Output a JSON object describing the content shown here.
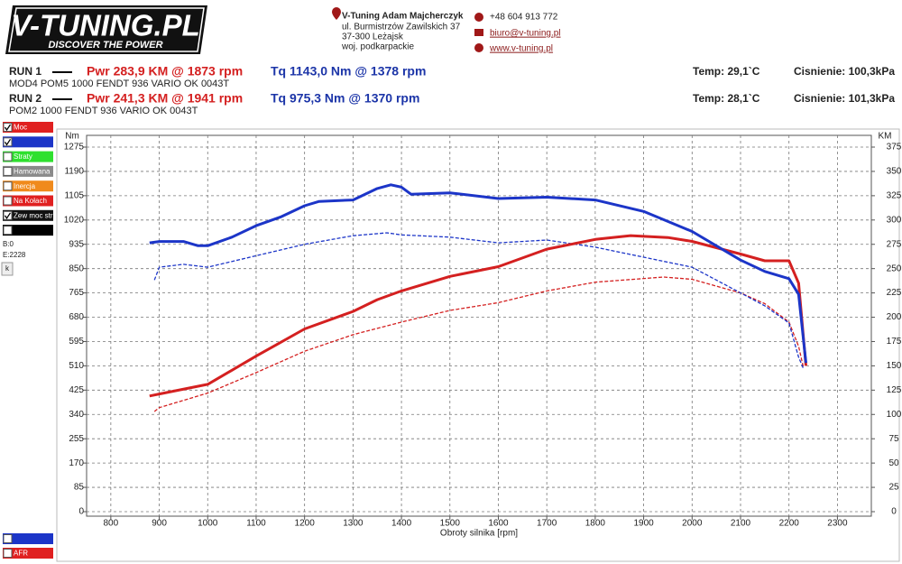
{
  "header": {
    "logo": "V-TUNING.PL",
    "slogan": "DISCOVER THE POWER",
    "company": "V-Tuning Adam Majcherczyk",
    "address": [
      "ul. Burmistrzów Zawilskich 37",
      "37-300 Leżajsk",
      "woj. podkarpackie"
    ],
    "phone": "+48 604 913 772",
    "email": "biuro@v-tuning.pl",
    "website": "www.v-tuning.pl"
  },
  "runs": [
    {
      "label": "RUN 1",
      "power": "Pwr 283,9 KM @ 1873 rpm",
      "torque": "Tq 1143,0 Nm @ 1378 rpm",
      "description": "MOD4 POM5 1000 FENDT 936 VARIO OK 0043T",
      "temp": "Temp: 29,1`C",
      "pressure": "Cisnienie: 100,3kPa"
    },
    {
      "label": "RUN 2",
      "power": "Pwr 241,3 KM @ 1941 rpm",
      "torque": "Tq 975,3 Nm @ 1370 rpm",
      "description": "POM2 1000 FENDT 936 VARIO OK 0043T",
      "temp": "Temp: 28,1`C",
      "pressure": "Cisnienie: 101,3kPa"
    }
  ],
  "panel": {
    "items": [
      {
        "label": "Moc",
        "checked": true,
        "color": "#e02020"
      },
      {
        "checked": true,
        "color": "#1c35c8"
      },
      {
        "label": "Straty",
        "checked": false,
        "color": "#2ee02e"
      },
      {
        "label": "Hamowana",
        "checked": false,
        "color": "#8a8a8a"
      },
      {
        "label": "Inercja",
        "checked": false,
        "color": "#f08a1c"
      },
      {
        "label": "Na Kołach",
        "checked": false,
        "color": "#e02020"
      },
      {
        "label": "Zew moc str",
        "checked": true,
        "color": "#111111"
      },
      {
        "checked": false,
        "color": "#000000"
      }
    ],
    "b": "B:0",
    "e": "E:2228",
    "button": "k",
    "bottom": [
      {
        "checked": false,
        "color": "#1c35c8"
      },
      {
        "label": "AFR",
        "checked": false,
        "color": "#e02020"
      }
    ]
  },
  "chart_data": {
    "type": "line",
    "xlabel": "Obroty silnika [rpm]",
    "ylabel": "Nm",
    "y2label": "KM",
    "xlim": [
      750,
      2370
    ],
    "xticks": [
      800,
      900,
      1000,
      1100,
      1200,
      1300,
      1400,
      1500,
      1600,
      1700,
      1800,
      1900,
      2000,
      2100,
      2200,
      2300
    ],
    "ylim": [
      0,
      1275
    ],
    "yticks": [
      0,
      85,
      170,
      255,
      340,
      425,
      510,
      595,
      680,
      765,
      850,
      935,
      1020,
      1105,
      1190,
      1275
    ],
    "y2lim": [
      0,
      375
    ],
    "y2ticks": [
      0,
      25,
      50,
      75,
      100,
      125,
      150,
      175,
      200,
      225,
      250,
      275,
      300,
      325,
      350,
      375
    ],
    "grid": true,
    "series": [
      {
        "color": "#d42020",
        "dashed": true,
        "axis": "y2",
        "x": [
          890,
          900,
          1000,
          1100,
          1200,
          1300,
          1400,
          1500,
          1600,
          1700,
          1800,
          1941,
          2000,
          2100,
          2150,
          2200,
          2220,
          2230
        ],
        "values": [
          103,
          107,
          122,
          143,
          165,
          182,
          195,
          207,
          215,
          227,
          236,
          241.3,
          239,
          225,
          214,
          195,
          170,
          148
        ]
      },
      {
        "color": "#1c35c8",
        "dashed": true,
        "axis": "y",
        "x": [
          890,
          900,
          950,
          1000,
          1100,
          1200,
          1300,
          1370,
          1400,
          1500,
          1600,
          1700,
          1800,
          1900,
          2000,
          2100,
          2150,
          2200,
          2220,
          2230
        ],
        "values": [
          810,
          855,
          865,
          855,
          895,
          935,
          965,
          975.3,
          968,
          960,
          940,
          950,
          925,
          890,
          855,
          765,
          720,
          660,
          540,
          500
        ]
      },
      {
        "color": "#d42020",
        "dashed": false,
        "axis": "y2",
        "x": [
          880,
          900,
          1000,
          1100,
          1200,
          1300,
          1350,
          1400,
          1500,
          1600,
          1700,
          1800,
          1873,
          1950,
          2000,
          2100,
          2150,
          2200,
          2220,
          2235
        ],
        "values": [
          119,
          121,
          131,
          160,
          188,
          206,
          218,
          227,
          242,
          252,
          270,
          280,
          283.9,
          282,
          278,
          265,
          258,
          258,
          235,
          150
        ]
      },
      {
        "color": "#1c35c8",
        "dashed": false,
        "axis": "y",
        "x": [
          880,
          900,
          950,
          980,
          1000,
          1050,
          1100,
          1150,
          1200,
          1230,
          1300,
          1350,
          1378,
          1400,
          1420,
          1500,
          1600,
          1700,
          1800,
          1900,
          2000,
          2100,
          2150,
          2200,
          2220,
          2235
        ],
        "values": [
          940,
          945,
          945,
          930,
          930,
          960,
          1000,
          1030,
          1070,
          1085,
          1090,
          1130,
          1143,
          1135,
          1110,
          1115,
          1095,
          1100,
          1090,
          1050,
          980,
          880,
          840,
          815,
          760,
          520
        ]
      }
    ]
  }
}
